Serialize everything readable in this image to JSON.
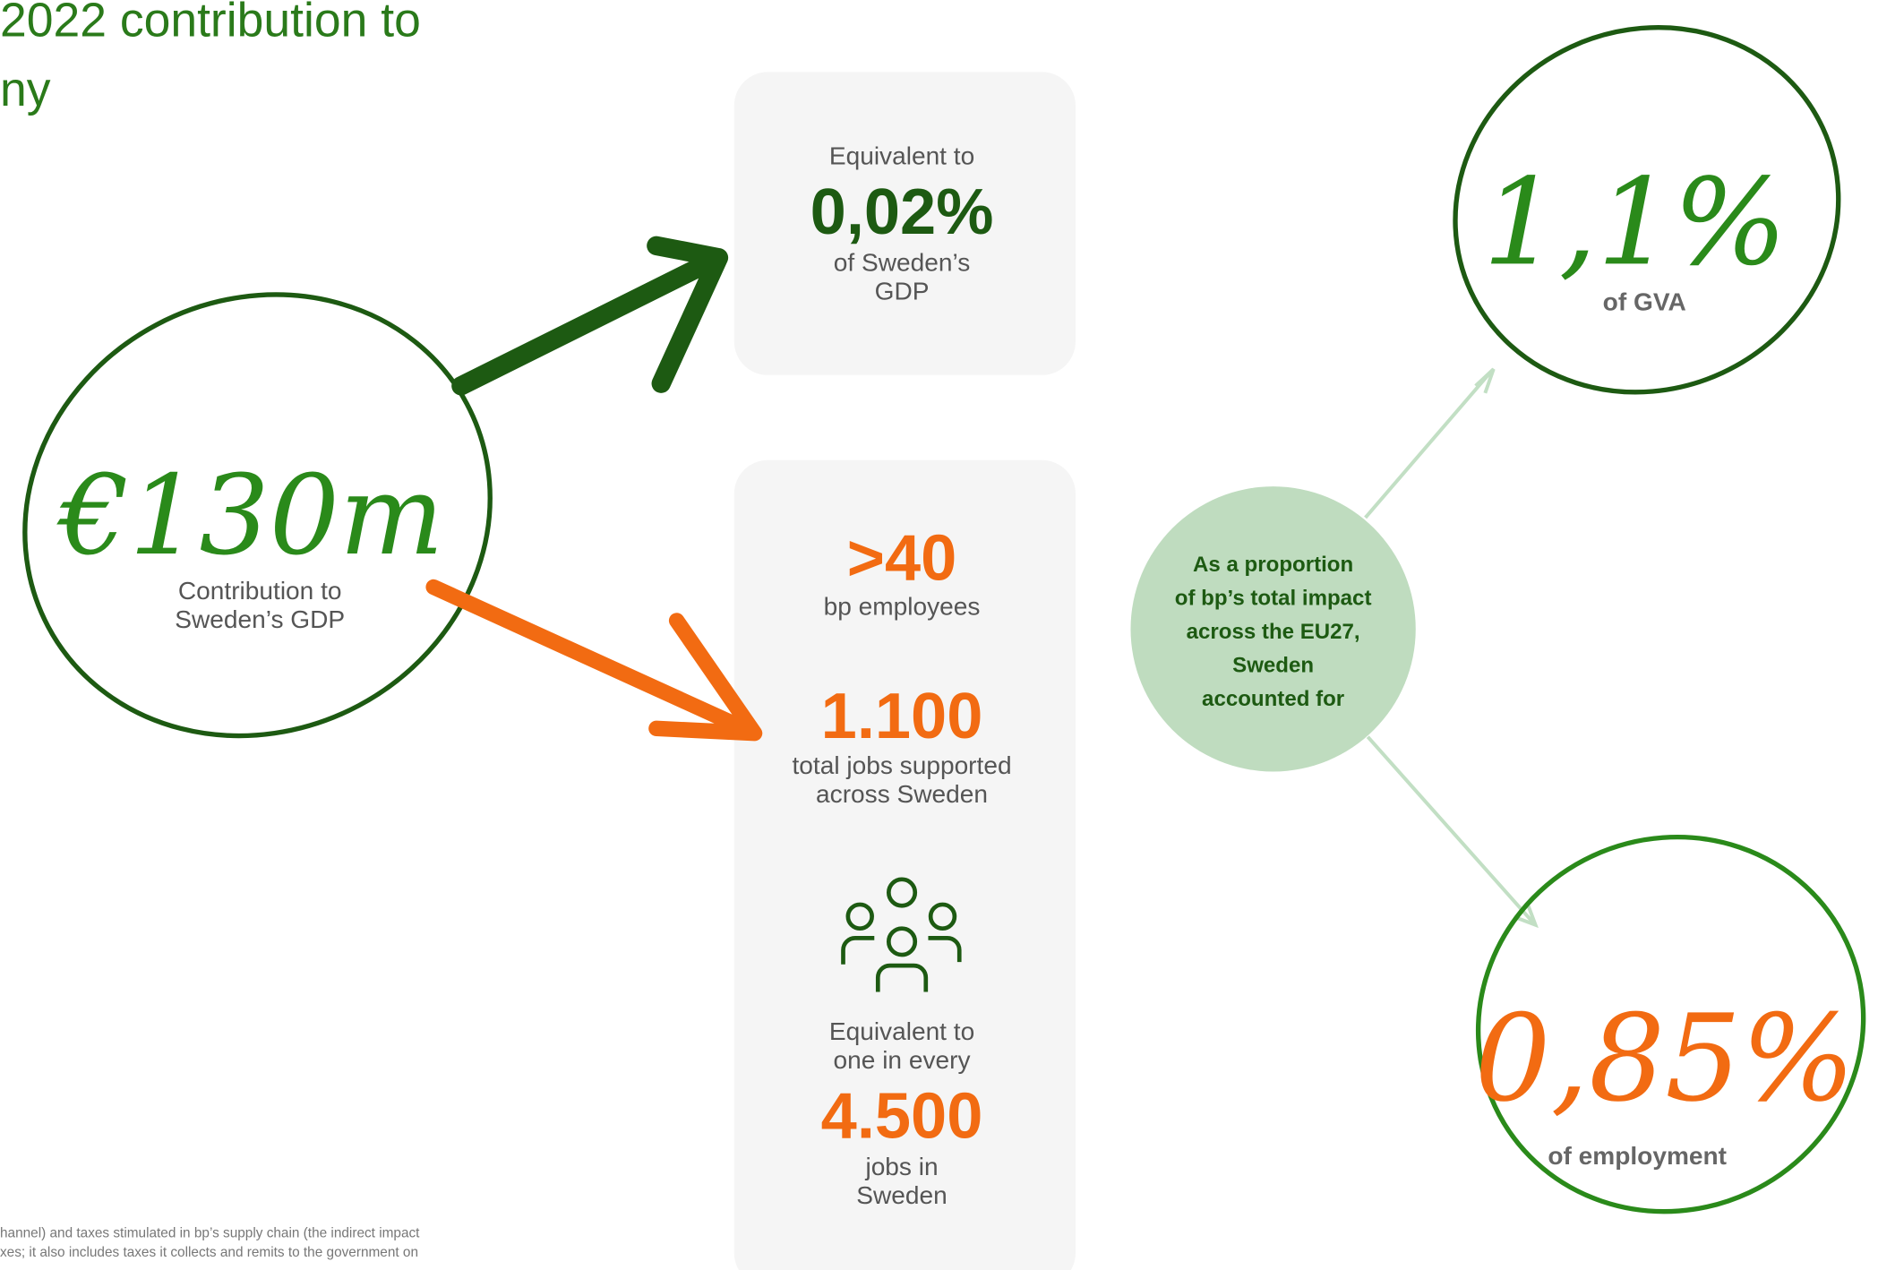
{
  "header": {
    "title": [
      "2022 contribution to",
      "ny"
    ]
  },
  "main": {
    "figure": "€130m",
    "label": [
      "Contribution to",
      "Sweden’s GDP"
    ]
  },
  "gdp_box": {
    "intro": "Equivalent to",
    "figure": "0,02%",
    "label": [
      "of Sweden’s",
      "GDP"
    ]
  },
  "jobs_box": {
    "employees": {
      "figure": ">40",
      "label": "bp employees"
    },
    "total_jobs": {
      "figure": "1.100",
      "label": [
        "total jobs supported",
        "across Sweden"
      ]
    },
    "equivalent": {
      "intro": [
        "Equivalent to",
        "one in every"
      ],
      "figure": "4.500",
      "label": [
        "jobs in",
        "Sweden"
      ]
    }
  },
  "center": {
    "text": [
      "As a proportion",
      "of bp’s total impact",
      "across the EU27,",
      "Sweden",
      "accounted for"
    ]
  },
  "gva": {
    "figure": "1,1%",
    "label": "of GVA"
  },
  "employment": {
    "figure": "0,85%",
    "label": "of employment"
  },
  "footnote": [
    "hannel) and taxes stimulated in bp’s supply chain (the indirect impact",
    "xes; it also includes taxes it collects and remits to the government on"
  ]
}
